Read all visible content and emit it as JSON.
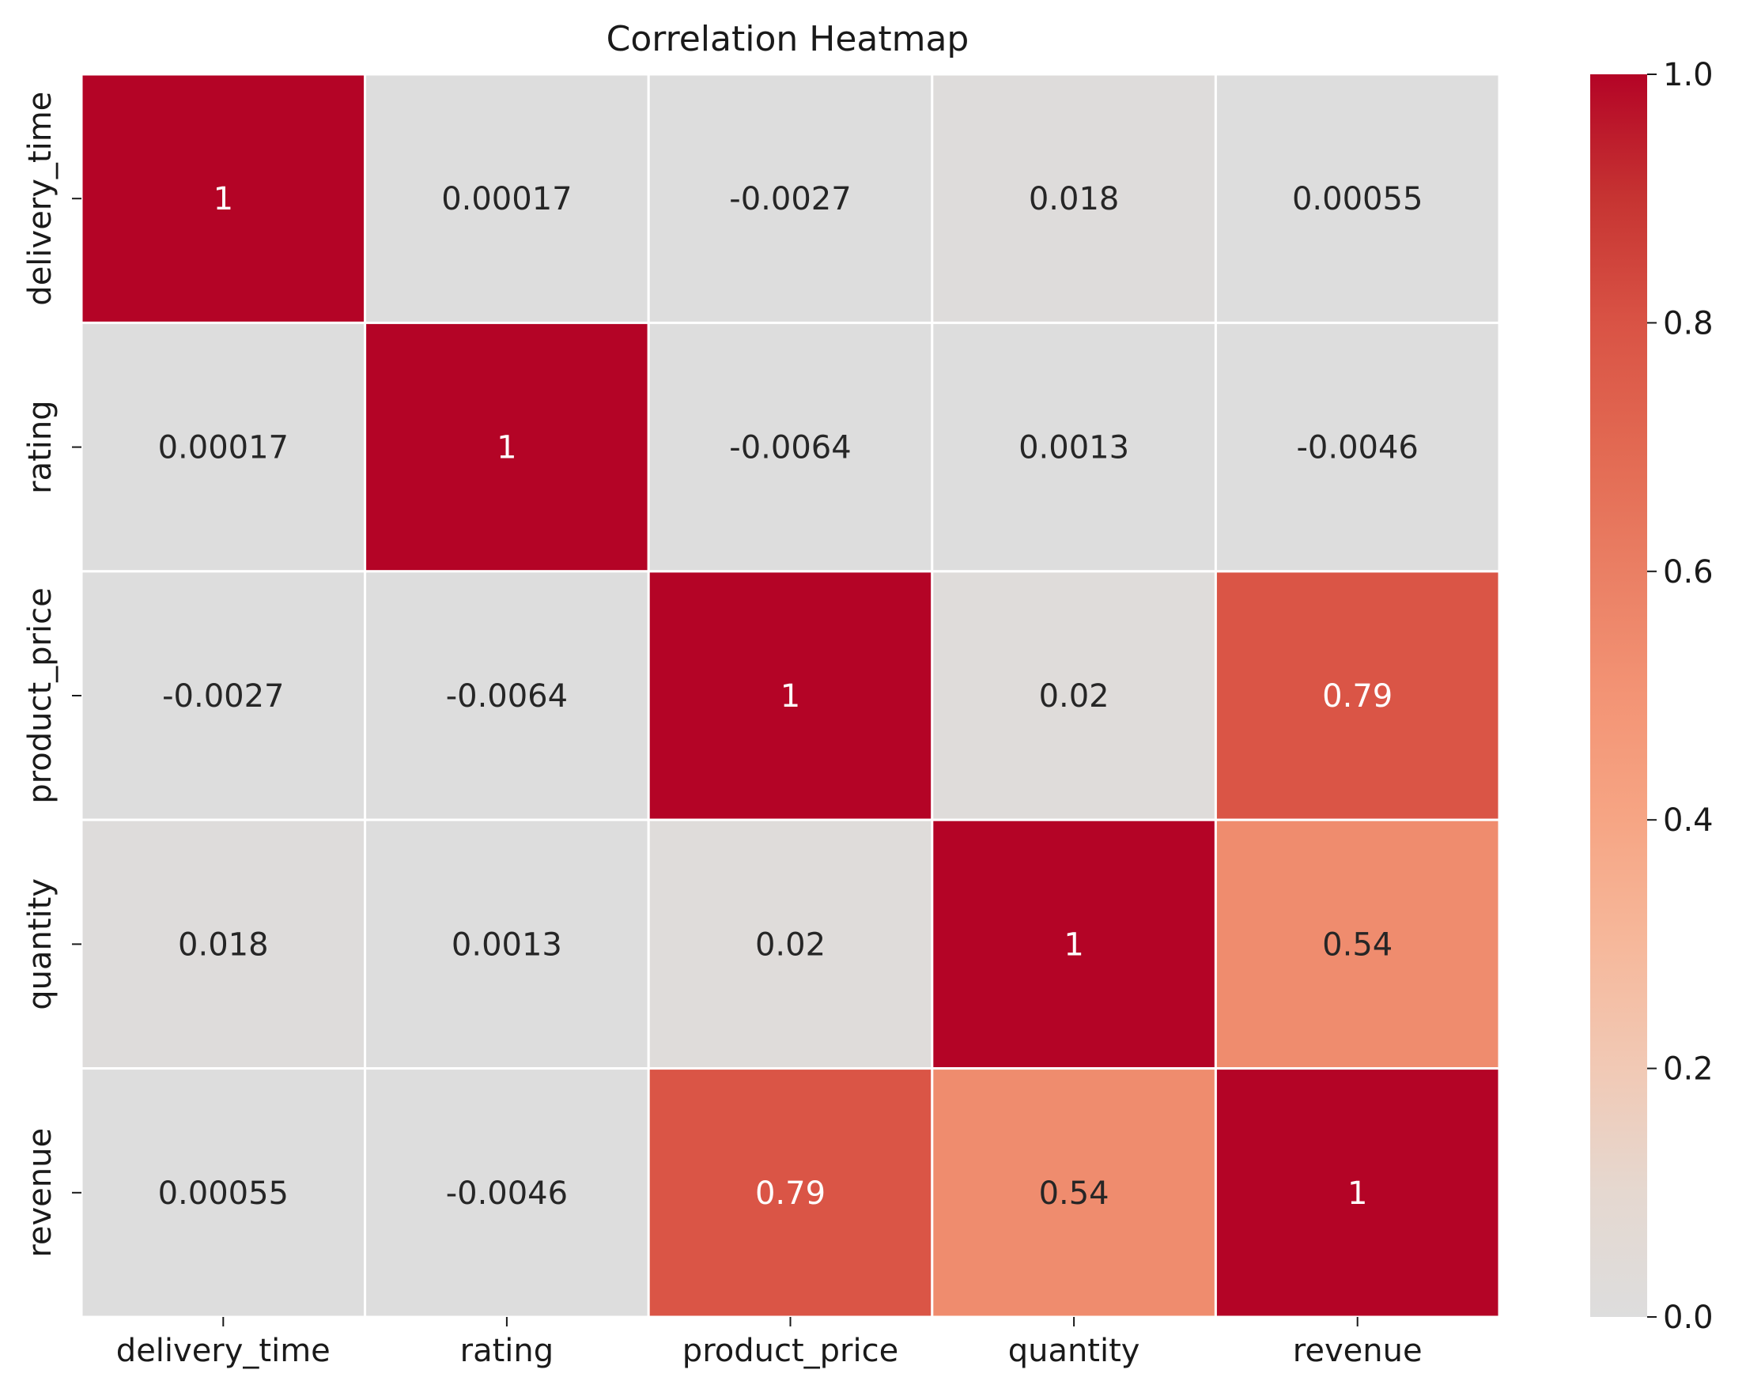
{
  "chart_data": {
    "type": "heatmap",
    "title": "Correlation Heatmap",
    "xlabel": "",
    "ylabel": "",
    "x_categories": [
      "delivery_time",
      "rating",
      "product_price",
      "quantity",
      "revenue"
    ],
    "y_categories": [
      "delivery_time",
      "rating",
      "product_price",
      "quantity",
      "revenue"
    ],
    "values": [
      [
        1,
        0.00017,
        -0.0027,
        0.018,
        0.00055
      ],
      [
        0.00017,
        1,
        -0.0064,
        0.0013,
        -0.0046
      ],
      [
        -0.0027,
        -0.0064,
        1,
        0.02,
        0.79
      ],
      [
        0.018,
        0.0013,
        0.02,
        1,
        0.54
      ],
      [
        0.00055,
        -0.0046,
        0.79,
        0.54,
        1
      ]
    ],
    "annotations": [
      [
        "1",
        "0.00017",
        "-0.0027",
        "0.018",
        "0.00055"
      ],
      [
        "0.00017",
        "1",
        "-0.0064",
        "0.0013",
        "-0.0046"
      ],
      [
        "-0.0027",
        "-0.0064",
        "1",
        "0.02",
        "0.79"
      ],
      [
        "0.018",
        "0.0013",
        "0.02",
        "1",
        "0.54"
      ],
      [
        "0.00055",
        "-0.0046",
        "0.79",
        "0.54",
        "1"
      ]
    ],
    "colorbar": {
      "range": [
        0.0,
        1.0
      ],
      "ticks": [
        0.0,
        0.2,
        0.4,
        0.6,
        0.8,
        1.0
      ],
      "tick_labels": [
        "0.0",
        "0.2",
        "0.4",
        "0.6",
        "0.8",
        "1.0"
      ],
      "colormap": "coolwarm (upper half)",
      "stops": [
        {
          "v": 0.0,
          "color": "#dddddd"
        },
        {
          "v": 0.1,
          "color": "#e5d8d0"
        },
        {
          "v": 0.2,
          "color": "#f1c9b5"
        },
        {
          "v": 0.3,
          "color": "#f6b89b"
        },
        {
          "v": 0.4,
          "color": "#f6a584"
        },
        {
          "v": 0.5,
          "color": "#f39475"
        },
        {
          "v": 0.6,
          "color": "#ea7f64"
        },
        {
          "v": 0.7,
          "color": "#e26952"
        },
        {
          "v": 0.8,
          "color": "#d95345"
        },
        {
          "v": 0.9,
          "color": "#c63432"
        },
        {
          "v": 1.0,
          "color": "#b40426"
        }
      ]
    },
    "grid_line_color": "#ffffff",
    "legend": "right"
  }
}
